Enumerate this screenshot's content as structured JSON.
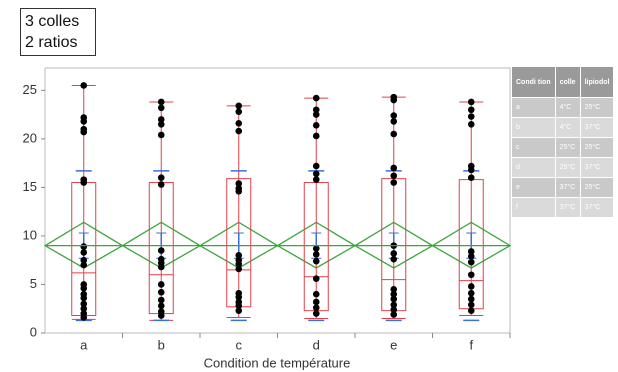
{
  "note": [
    "3 colles",
    "2 ratios"
  ],
  "chart_data": {
    "type": "box",
    "x_label": "Condition de température",
    "categories": [
      "a",
      "b",
      "c",
      "d",
      "e",
      "f"
    ],
    "ylim": [
      0,
      27.3
    ],
    "yticks": [
      0,
      5,
      10,
      15,
      20,
      25
    ],
    "grand_mean": 9.0,
    "colors": {
      "box": "#e0404a",
      "point": "#000000",
      "diamond": "#3aa63a",
      "bars": "#3a6fd8"
    },
    "boxes": [
      {
        "min": 1.4,
        "q1": 1.8,
        "median": 6.2,
        "q3": 15.5,
        "max": 25.5,
        "mean": 9.0,
        "sd_low": 1.3,
        "sd_high": 16.7,
        "se_low": 7.7,
        "se_high": 10.3,
        "diamond_low": 6.7,
        "diamond_high": 11.4,
        "points": [
          25.5,
          22.2,
          21.8,
          21.0,
          20.7,
          15.8,
          15.5,
          8.9,
          8.3,
          7.5,
          7.0,
          5.0,
          4.6,
          4.0,
          3.6,
          3.0,
          2.5,
          2.0,
          1.6
        ]
      },
      {
        "min": 1.3,
        "q1": 2.0,
        "median": 6.0,
        "q3": 15.5,
        "max": 23.8,
        "mean": 9.0,
        "sd_low": 1.3,
        "sd_high": 16.7,
        "se_low": 7.7,
        "se_high": 10.3,
        "diamond_low": 6.7,
        "diamond_high": 11.4,
        "points": [
          23.8,
          23.2,
          22.0,
          21.5,
          20.4,
          16.0,
          15.3,
          8.5,
          7.6,
          7.2,
          6.8,
          5.0,
          4.2,
          3.4,
          2.8,
          2.2,
          1.8
        ]
      },
      {
        "min": 1.6,
        "q1": 2.7,
        "median": 6.5,
        "q3": 15.9,
        "max": 23.4,
        "mean": 9.0,
        "sd_low": 1.3,
        "sd_high": 16.7,
        "se_low": 7.7,
        "se_high": 10.3,
        "diamond_low": 6.7,
        "diamond_high": 11.4,
        "points": [
          23.4,
          22.8,
          21.6,
          20.8,
          15.4,
          14.9,
          14.6,
          8.0,
          7.5,
          7.1,
          6.6,
          4.1,
          3.7,
          3.2,
          2.8,
          2.3
        ]
      },
      {
        "min": 1.5,
        "q1": 2.3,
        "median": 5.8,
        "q3": 15.5,
        "max": 24.2,
        "mean": 9.0,
        "sd_low": 1.3,
        "sd_high": 16.7,
        "se_low": 7.7,
        "se_high": 10.3,
        "diamond_low": 6.7,
        "diamond_high": 11.4,
        "points": [
          24.2,
          23.0,
          22.5,
          21.4,
          20.3,
          17.2,
          16.4,
          15.8,
          8.7,
          8.1,
          7.4,
          5.6,
          4.0,
          3.2,
          2.6,
          2.0
        ]
      },
      {
        "min": 1.5,
        "q1": 2.3,
        "median": 5.5,
        "q3": 15.9,
        "max": 24.3,
        "mean": 9.0,
        "sd_low": 1.3,
        "sd_high": 16.7,
        "se_low": 7.7,
        "se_high": 10.3,
        "diamond_low": 6.7,
        "diamond_high": 11.4,
        "points": [
          24.3,
          24.0,
          22.4,
          21.8,
          20.5,
          17.0,
          16.2,
          15.5,
          9.0,
          8.2,
          7.6,
          4.5,
          4.0,
          3.5,
          2.9,
          2.4,
          1.9
        ]
      },
      {
        "min": 1.8,
        "q1": 2.5,
        "median": 5.4,
        "q3": 15.8,
        "max": 23.8,
        "mean": 9.0,
        "sd_low": 1.3,
        "sd_high": 16.7,
        "se_low": 7.7,
        "se_high": 10.3,
        "diamond_low": 6.7,
        "diamond_high": 11.4,
        "points": [
          23.8,
          23.0,
          22.3,
          21.5,
          17.2,
          16.8,
          16.0,
          8.4,
          7.9,
          7.3,
          6.0,
          4.8,
          4.1,
          3.5,
          2.9,
          2.3
        ]
      }
    ]
  },
  "table": {
    "header": [
      "Condi tion",
      "colle",
      "lipiodol"
    ],
    "rows": [
      [
        "a",
        "4°C",
        "25°C"
      ],
      [
        "b",
        "4°C",
        "37°C"
      ],
      [
        "c",
        "25°C",
        "25°C"
      ],
      [
        "d",
        "25°C",
        "37°C"
      ],
      [
        "e",
        "37°C",
        "25°C"
      ],
      [
        "f",
        "37°C",
        "37°C"
      ]
    ]
  }
}
